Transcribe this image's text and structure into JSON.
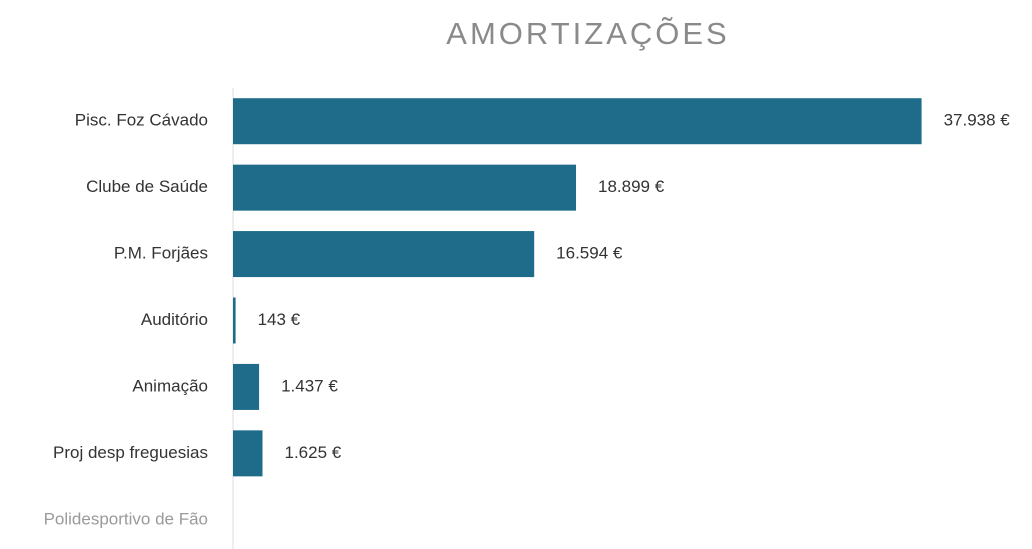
{
  "chart_data": {
    "type": "bar",
    "orientation": "horizontal",
    "title": "AMORTIZAÇÕES",
    "categories": [
      "Pisc. Foz Cávado",
      "Clube de Saúde",
      "P.M. Forjães",
      "Auditório",
      "Animação",
      "Proj desp freguesias",
      "Polidesportivo de Fão"
    ],
    "values": [
      37938,
      18899,
      16594,
      143,
      1437,
      1625,
      null
    ],
    "value_labels": [
      "37.938 €",
      "18.899 €",
      "16.594 €",
      "143 €",
      "1.437 €",
      "1.625 €",
      null
    ],
    "color": "#1f6b8a",
    "xlim": [
      0,
      40000
    ]
  }
}
